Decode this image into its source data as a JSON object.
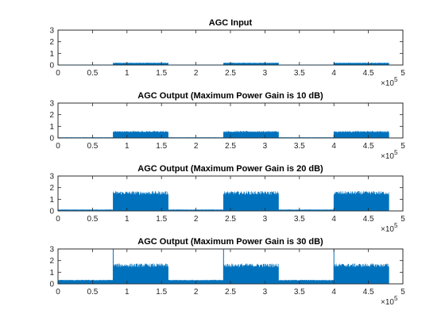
{
  "chart_data": [
    {
      "type": "line",
      "title": "AGC Input",
      "xlabel": "",
      "ylabel": "",
      "xlim": [
        0,
        500000
      ],
      "ylim": [
        0,
        3
      ],
      "xticks": [
        "0",
        "0.5",
        "1",
        "1.5",
        "2",
        "2.5",
        "3",
        "3.5",
        "4",
        "4.5",
        "5"
      ],
      "yticks": [
        "0",
        "1",
        "2",
        "3"
      ],
      "x_exponent_base": "×10",
      "x_exponent_power": "5",
      "series": [
        {
          "color": "#0072BD",
          "segments": [
            {
              "x_start": 0,
              "x_end": 80000,
              "low": 0.0,
              "high": 0.02
            },
            {
              "x_start": 80000,
              "x_end": 160000,
              "low": 0.0,
              "high": 0.2
            },
            {
              "x_start": 160000,
              "x_end": 240000,
              "low": 0.0,
              "high": 0.02
            },
            {
              "x_start": 240000,
              "x_end": 320000,
              "low": 0.0,
              "high": 0.2
            },
            {
              "x_start": 320000,
              "x_end": 400000,
              "low": 0.0,
              "high": 0.02
            },
            {
              "x_start": 400000,
              "x_end": 480000,
              "low": 0.0,
              "high": 0.2
            }
          ]
        }
      ]
    },
    {
      "type": "line",
      "title": "AGC Output (Maximum Power Gain is 10 dB)",
      "xlabel": "",
      "ylabel": "",
      "xlim": [
        0,
        500000
      ],
      "ylim": [
        0,
        3
      ],
      "xticks": [
        "0",
        "0.5",
        "1",
        "1.5",
        "2",
        "2.5",
        "3",
        "3.5",
        "4",
        "4.5",
        "5"
      ],
      "yticks": [
        "0",
        "1",
        "2",
        "3"
      ],
      "x_exponent_base": "×10",
      "x_exponent_power": "5",
      "series": [
        {
          "color": "#0072BD",
          "segments": [
            {
              "x_start": 0,
              "x_end": 80000,
              "low": 0.0,
              "high": 0.05
            },
            {
              "x_start": 80000,
              "x_end": 160000,
              "low": 0.0,
              "high": 0.6
            },
            {
              "x_start": 160000,
              "x_end": 240000,
              "low": 0.0,
              "high": 0.05
            },
            {
              "x_start": 240000,
              "x_end": 320000,
              "low": 0.0,
              "high": 0.6
            },
            {
              "x_start": 320000,
              "x_end": 400000,
              "low": 0.0,
              "high": 0.05
            },
            {
              "x_start": 400000,
              "x_end": 480000,
              "low": 0.0,
              "high": 0.6
            }
          ]
        }
      ]
    },
    {
      "type": "line",
      "title": "AGC Output (Maximum Power Gain is 20 dB)",
      "xlabel": "",
      "ylabel": "",
      "xlim": [
        0,
        500000
      ],
      "ylim": [
        0,
        3
      ],
      "xticks": [
        "0",
        "0.5",
        "1",
        "1.5",
        "2",
        "2.5",
        "3",
        "3.5",
        "4",
        "4.5",
        "5"
      ],
      "yticks": [
        "0",
        "1",
        "2",
        "3"
      ],
      "x_exponent_base": "×10",
      "x_exponent_power": "5",
      "series": [
        {
          "color": "#0072BD",
          "segments": [
            {
              "x_start": 0,
              "x_end": 80000,
              "low": 0.0,
              "high": 0.12
            },
            {
              "x_start": 80000,
              "x_end": 160000,
              "low": 0.0,
              "high": 1.7
            },
            {
              "x_start": 160000,
              "x_end": 240000,
              "low": 0.0,
              "high": 0.12
            },
            {
              "x_start": 240000,
              "x_end": 320000,
              "low": 0.0,
              "high": 1.7
            },
            {
              "x_start": 320000,
              "x_end": 400000,
              "low": 0.0,
              "high": 0.12
            },
            {
              "x_start": 400000,
              "x_end": 480000,
              "low": 0.0,
              "high": 1.7
            }
          ]
        }
      ]
    },
    {
      "type": "line",
      "title": "AGC Output (Maximum Power Gain is 30 dB)",
      "xlabel": "",
      "ylabel": "",
      "xlim": [
        0,
        500000
      ],
      "ylim": [
        0,
        3
      ],
      "xticks": [
        "0",
        "0.5",
        "1",
        "1.5",
        "2",
        "2.5",
        "3",
        "3.5",
        "4",
        "4.5",
        "5"
      ],
      "yticks": [
        "0",
        "1",
        "2",
        "3"
      ],
      "x_exponent_base": "×10",
      "x_exponent_power": "5",
      "series": [
        {
          "color": "#0072BD",
          "spike_height": 3.0,
          "segments": [
            {
              "x_start": 0,
              "x_end": 80000,
              "low": 0.0,
              "high": 0.35
            },
            {
              "x_start": 80000,
              "x_end": 160000,
              "low": 0.0,
              "high": 1.75
            },
            {
              "x_start": 160000,
              "x_end": 240000,
              "low": 0.0,
              "high": 0.35
            },
            {
              "x_start": 240000,
              "x_end": 320000,
              "low": 0.0,
              "high": 1.75
            },
            {
              "x_start": 320000,
              "x_end": 400000,
              "low": 0.0,
              "high": 0.35
            },
            {
              "x_start": 400000,
              "x_end": 480000,
              "low": 0.0,
              "high": 1.75
            }
          ]
        }
      ]
    }
  ]
}
